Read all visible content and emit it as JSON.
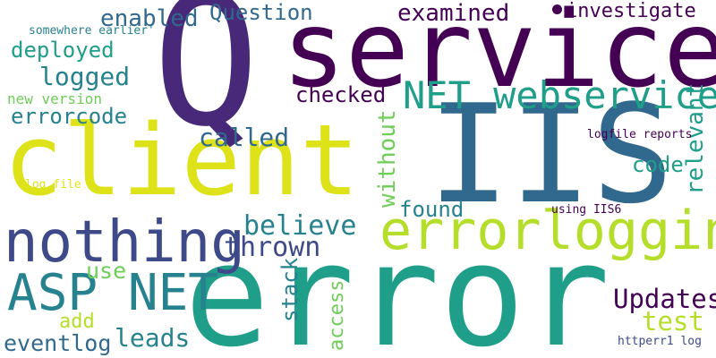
{
  "colors": {
    "background": "#ffffff",
    "dark_purple": "#440154",
    "purple": "#482878",
    "indigo": "#3e4989",
    "blue": "#31688e",
    "teal_blue": "#26828e",
    "teal": "#1f9e89",
    "green": "#35b779",
    "light_green": "#6ece58",
    "lime": "#b5de2b",
    "yellow": "#dde318"
  },
  "words": {
    "error": "error",
    "service": "service",
    "iis": "IIS",
    "client": "client",
    "big_q": "Q",
    "nothing": "nothing",
    "errorlogging": "errorlogging",
    "asp_net": "ASP NET",
    "net_webservice": "NET webservice",
    "updates": "Updates",
    "test": "test",
    "believe": "believe",
    "thrown": "thrown",
    "stack": "stack",
    "access": "access",
    "leads": "leads",
    "eventlog": "eventlog",
    "add": "add",
    "use": "use",
    "called": "called",
    "checked": "checked",
    "found": "found",
    "without": "without",
    "relevant": "relevant",
    "code": "code",
    "logfile_reports": "logfile reports",
    "using_iis6": "using IIS6",
    "httperr1_log": "httperr1 log",
    "log_file": "log file",
    "new_version": "new version",
    "errorcode": "errorcode",
    "logged": "logged",
    "deployed": "deployed",
    "somewhere_earlier": "somewhere earlier'",
    "enabled": "enabled",
    "question": "Question",
    "examined": "examined",
    "investigate": "investigate"
  }
}
